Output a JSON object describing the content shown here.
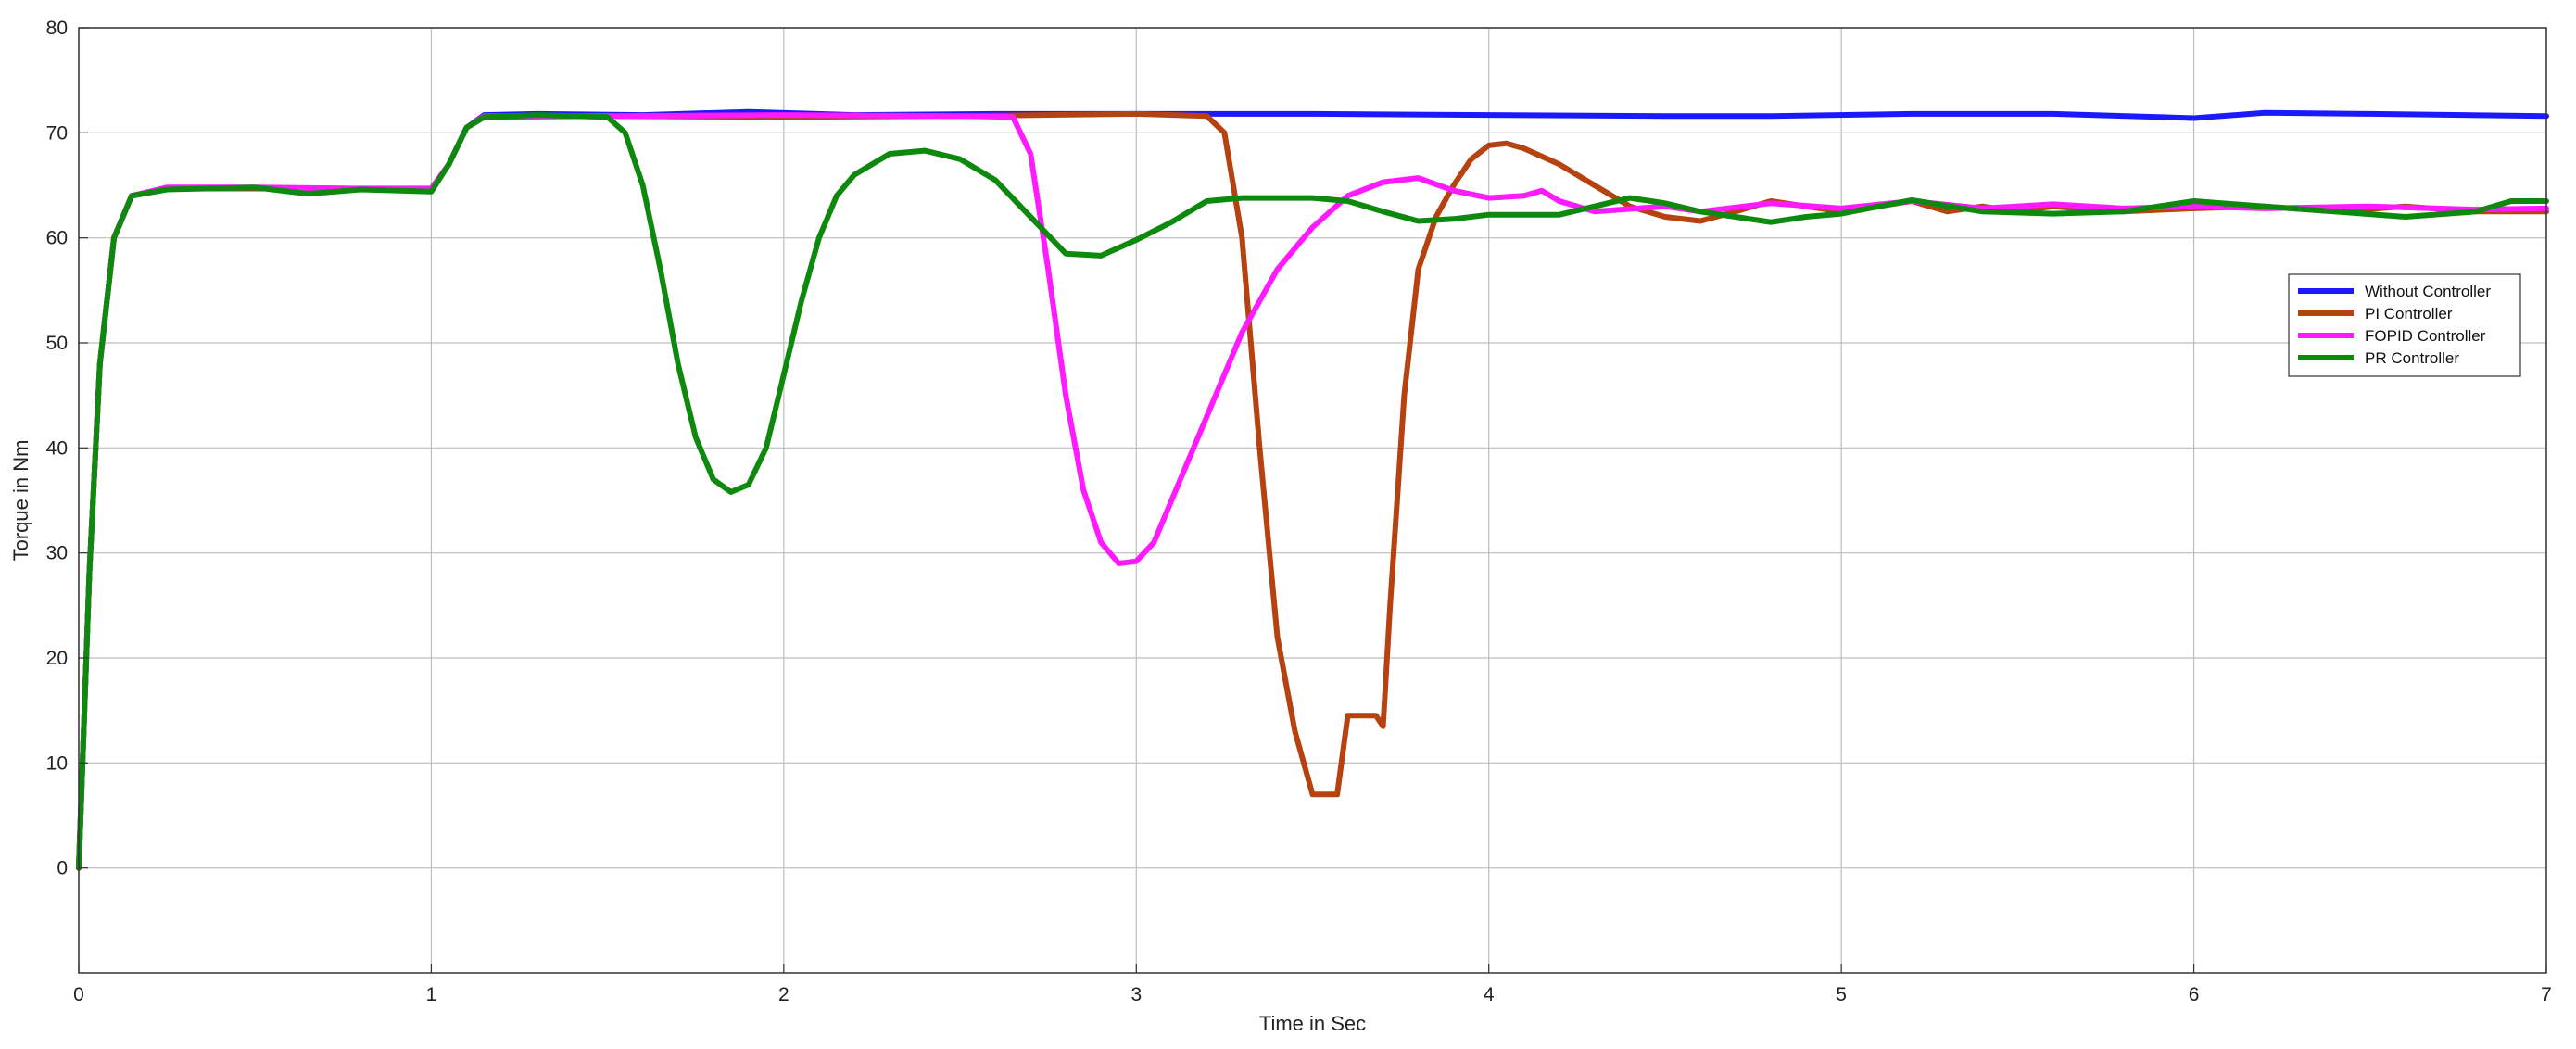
{
  "chart_data": {
    "type": "line",
    "title": "",
    "xlabel": "Time in Sec",
    "ylabel": "Torque in Nm",
    "xlim": [
      0,
      7
    ],
    "ylim": [
      -10,
      80
    ],
    "xticks": [
      0,
      1,
      2,
      3,
      4,
      5,
      6,
      7
    ],
    "yticks": [
      0,
      10,
      20,
      30,
      40,
      50,
      60,
      70,
      80
    ],
    "grid": true,
    "legend_position": "right",
    "series": [
      {
        "name": "Without Controller",
        "color": "#1a1aff",
        "points": [
          [
            0,
            0
          ],
          [
            0.03,
            28
          ],
          [
            0.06,
            48
          ],
          [
            0.1,
            60
          ],
          [
            0.15,
            64
          ],
          [
            0.25,
            64.7
          ],
          [
            0.5,
            64.7
          ],
          [
            0.8,
            64.6
          ],
          [
            1.0,
            64.6
          ],
          [
            1.05,
            67
          ],
          [
            1.1,
            70.5
          ],
          [
            1.15,
            71.7
          ],
          [
            1.3,
            71.8
          ],
          [
            1.6,
            71.7
          ],
          [
            1.9,
            72.0
          ],
          [
            2.2,
            71.7
          ],
          [
            2.6,
            71.8
          ],
          [
            3.0,
            71.8
          ],
          [
            3.5,
            71.8
          ],
          [
            4.0,
            71.7
          ],
          [
            4.5,
            71.6
          ],
          [
            4.8,
            71.6
          ],
          [
            5.2,
            71.8
          ],
          [
            5.6,
            71.8
          ],
          [
            5.9,
            71.5
          ],
          [
            6.0,
            71.4
          ],
          [
            6.2,
            71.9
          ],
          [
            6.5,
            71.8
          ],
          [
            7.0,
            71.6
          ]
        ]
      },
      {
        "name": "PI Controller",
        "color": "#b5420f",
        "points": [
          [
            0,
            0
          ],
          [
            0.03,
            28
          ],
          [
            0.06,
            48
          ],
          [
            0.1,
            60
          ],
          [
            0.15,
            64
          ],
          [
            0.25,
            64.7
          ],
          [
            0.5,
            64.7
          ],
          [
            0.8,
            64.6
          ],
          [
            1.0,
            64.6
          ],
          [
            1.05,
            67
          ],
          [
            1.1,
            70.5
          ],
          [
            1.15,
            71.5
          ],
          [
            1.5,
            71.6
          ],
          [
            2.0,
            71.5
          ],
          [
            2.5,
            71.6
          ],
          [
            3.0,
            71.8
          ],
          [
            3.2,
            71.6
          ],
          [
            3.25,
            70
          ],
          [
            3.3,
            60
          ],
          [
            3.35,
            40
          ],
          [
            3.4,
            22
          ],
          [
            3.45,
            13
          ],
          [
            3.5,
            7
          ],
          [
            3.57,
            7
          ],
          [
            3.6,
            14.5
          ],
          [
            3.68,
            14.5
          ],
          [
            3.7,
            13.5
          ],
          [
            3.72,
            25
          ],
          [
            3.76,
            45
          ],
          [
            3.8,
            57
          ],
          [
            3.85,
            62
          ],
          [
            3.9,
            65
          ],
          [
            3.95,
            67.5
          ],
          [
            4.0,
            68.8
          ],
          [
            4.05,
            69
          ],
          [
            4.1,
            68.5
          ],
          [
            4.2,
            67
          ],
          [
            4.3,
            65
          ],
          [
            4.4,
            63
          ],
          [
            4.5,
            62
          ],
          [
            4.6,
            61.6
          ],
          [
            4.7,
            62.5
          ],
          [
            4.8,
            63.5
          ],
          [
            4.9,
            63
          ],
          [
            5.0,
            62.5
          ],
          [
            5.1,
            63
          ],
          [
            5.2,
            63.5
          ],
          [
            5.3,
            62.5
          ],
          [
            5.4,
            63
          ],
          [
            5.5,
            62.5
          ],
          [
            5.6,
            63
          ],
          [
            5.8,
            62.5
          ],
          [
            6.0,
            62.8
          ],
          [
            6.2,
            63
          ],
          [
            6.4,
            62.5
          ],
          [
            6.6,
            63
          ],
          [
            6.8,
            62.5
          ],
          [
            7.0,
            62.5
          ]
        ]
      },
      {
        "name": "FOPID Controller",
        "color": "#ff1aff",
        "points": [
          [
            0,
            0
          ],
          [
            0.03,
            28
          ],
          [
            0.06,
            48
          ],
          [
            0.1,
            60
          ],
          [
            0.15,
            64
          ],
          [
            0.25,
            64.8
          ],
          [
            0.5,
            64.8
          ],
          [
            0.8,
            64.7
          ],
          [
            1.0,
            64.7
          ],
          [
            1.05,
            67
          ],
          [
            1.1,
            70.5
          ],
          [
            1.15,
            71.6
          ],
          [
            1.5,
            71.6
          ],
          [
            2.0,
            71.7
          ],
          [
            2.5,
            71.6
          ],
          [
            2.65,
            71.5
          ],
          [
            2.7,
            68
          ],
          [
            2.75,
            57
          ],
          [
            2.8,
            45
          ],
          [
            2.85,
            36
          ],
          [
            2.9,
            31
          ],
          [
            2.95,
            29
          ],
          [
            3.0,
            29.2
          ],
          [
            3.05,
            31
          ],
          [
            3.1,
            35
          ],
          [
            3.2,
            43
          ],
          [
            3.3,
            51
          ],
          [
            3.4,
            57
          ],
          [
            3.5,
            61
          ],
          [
            3.6,
            64
          ],
          [
            3.7,
            65.3
          ],
          [
            3.8,
            65.7
          ],
          [
            3.9,
            64.5
          ],
          [
            4.0,
            63.8
          ],
          [
            4.1,
            64
          ],
          [
            4.15,
            64.5
          ],
          [
            4.2,
            63.5
          ],
          [
            4.3,
            62.5
          ],
          [
            4.5,
            63
          ],
          [
            4.6,
            62.5
          ],
          [
            4.8,
            63.3
          ],
          [
            5.0,
            62.8
          ],
          [
            5.2,
            63.5
          ],
          [
            5.4,
            62.8
          ],
          [
            5.6,
            63.2
          ],
          [
            5.8,
            62.8
          ],
          [
            6.0,
            63
          ],
          [
            6.2,
            62.8
          ],
          [
            6.5,
            63
          ],
          [
            6.8,
            62.7
          ],
          [
            7.0,
            62.8
          ]
        ]
      },
      {
        "name": "PR Controller",
        "color": "#0d8a0d",
        "points": [
          [
            0,
            0
          ],
          [
            0.03,
            28
          ],
          [
            0.06,
            48
          ],
          [
            0.1,
            60
          ],
          [
            0.15,
            64
          ],
          [
            0.25,
            64.6
          ],
          [
            0.5,
            64.8
          ],
          [
            0.65,
            64.2
          ],
          [
            0.8,
            64.6
          ],
          [
            1.0,
            64.4
          ],
          [
            1.05,
            67
          ],
          [
            1.1,
            70.5
          ],
          [
            1.15,
            71.5
          ],
          [
            1.3,
            71.7
          ],
          [
            1.5,
            71.5
          ],
          [
            1.55,
            70
          ],
          [
            1.6,
            65
          ],
          [
            1.65,
            57
          ],
          [
            1.7,
            48
          ],
          [
            1.75,
            41
          ],
          [
            1.8,
            37
          ],
          [
            1.85,
            35.8
          ],
          [
            1.9,
            36.5
          ],
          [
            1.95,
            40
          ],
          [
            2.0,
            47
          ],
          [
            2.05,
            54
          ],
          [
            2.1,
            60
          ],
          [
            2.15,
            64
          ],
          [
            2.2,
            66
          ],
          [
            2.3,
            68
          ],
          [
            2.4,
            68.3
          ],
          [
            2.5,
            67.5
          ],
          [
            2.6,
            65.5
          ],
          [
            2.7,
            62
          ],
          [
            2.8,
            58.5
          ],
          [
            2.9,
            58.3
          ],
          [
            3.0,
            59.8
          ],
          [
            3.1,
            61.5
          ],
          [
            3.2,
            63.5
          ],
          [
            3.3,
            63.8
          ],
          [
            3.5,
            63.8
          ],
          [
            3.6,
            63.5
          ],
          [
            3.7,
            62.5
          ],
          [
            3.8,
            61.6
          ],
          [
            3.9,
            61.8
          ],
          [
            4.0,
            62.2
          ],
          [
            4.2,
            62.2
          ],
          [
            4.3,
            63
          ],
          [
            4.4,
            63.8
          ],
          [
            4.5,
            63.3
          ],
          [
            4.6,
            62.5
          ],
          [
            4.7,
            62
          ],
          [
            4.8,
            61.5
          ],
          [
            4.9,
            62
          ],
          [
            5.0,
            62.3
          ],
          [
            5.2,
            63.6
          ],
          [
            5.4,
            62.5
          ],
          [
            5.6,
            62.3
          ],
          [
            5.8,
            62.5
          ],
          [
            6.0,
            63.5
          ],
          [
            6.2,
            63
          ],
          [
            6.4,
            62.5
          ],
          [
            6.6,
            62
          ],
          [
            6.8,
            62.5
          ],
          [
            6.9,
            63.5
          ],
          [
            7.0,
            63.5
          ]
        ]
      }
    ]
  }
}
